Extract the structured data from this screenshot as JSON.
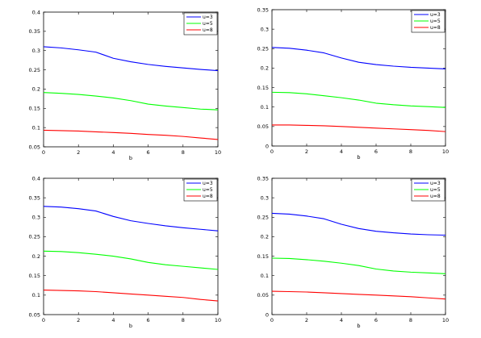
{
  "chart_data": [
    {
      "type": "line",
      "xlabel": "b",
      "ylabel": "",
      "title": "",
      "xlim": [
        0,
        10
      ],
      "ylim": [
        0.05,
        0.4
      ],
      "xticks": [
        0,
        2,
        4,
        6,
        8,
        10
      ],
      "yticks": [
        0.05,
        0.1,
        0.15,
        0.2,
        0.25,
        0.3,
        0.35,
        0.4
      ],
      "ytick_labels": [
        "0.05",
        "0.1",
        "0.15",
        "0.2",
        "0.25",
        "0.3",
        "0.35",
        "0.4"
      ],
      "grid": false,
      "legend": "top-right",
      "x": [
        0,
        1,
        2,
        3,
        4,
        5,
        6,
        7,
        8,
        9,
        10
      ],
      "series": [
        {
          "name": "u=3",
          "color": "#0000ff",
          "values": [
            0.31,
            0.307,
            0.302,
            0.296,
            0.28,
            0.271,
            0.264,
            0.259,
            0.255,
            0.251,
            0.248
          ]
        },
        {
          "name": "u=5",
          "color": "#00ff00",
          "values": [
            0.191,
            0.189,
            0.186,
            0.182,
            0.177,
            0.17,
            0.161,
            0.156,
            0.152,
            0.148,
            0.146
          ]
        },
        {
          "name": "u=8",
          "color": "#ff0000",
          "values": [
            0.093,
            0.092,
            0.091,
            0.089,
            0.087,
            0.085,
            0.082,
            0.08,
            0.077,
            0.073,
            0.069
          ]
        }
      ]
    },
    {
      "type": "line",
      "xlabel": "b",
      "ylabel": "",
      "title": "",
      "xlim": [
        0,
        10
      ],
      "ylim": [
        0,
        0.35
      ],
      "xticks": [
        0,
        2,
        4,
        6,
        8,
        10
      ],
      "yticks": [
        0,
        0.05,
        0.1,
        0.15,
        0.2,
        0.25,
        0.3,
        0.35
      ],
      "ytick_labels": [
        "0",
        "0.05",
        "0.1",
        "0.15",
        "0.2",
        "0.25",
        "0.3",
        "0.35"
      ],
      "grid": false,
      "legend": "top-right",
      "x": [
        0,
        1,
        2,
        3,
        4,
        5,
        6,
        7,
        8,
        9,
        10
      ],
      "series": [
        {
          "name": "u=3",
          "color": "#0000ff",
          "values": [
            0.253,
            0.251,
            0.246,
            0.239,
            0.226,
            0.215,
            0.209,
            0.205,
            0.202,
            0.2,
            0.198
          ]
        },
        {
          "name": "u=5",
          "color": "#00ff00",
          "values": [
            0.138,
            0.137,
            0.134,
            0.129,
            0.124,
            0.118,
            0.11,
            0.106,
            0.103,
            0.101,
            0.099
          ]
        },
        {
          "name": "u=8",
          "color": "#ff0000",
          "values": [
            0.054,
            0.054,
            0.053,
            0.052,
            0.05,
            0.048,
            0.046,
            0.044,
            0.042,
            0.04,
            0.037
          ]
        }
      ]
    },
    {
      "type": "line",
      "xlabel": "b",
      "ylabel": "",
      "title": "",
      "xlim": [
        0,
        10
      ],
      "ylim": [
        0.05,
        0.4
      ],
      "xticks": [
        0,
        2,
        4,
        6,
        8,
        10
      ],
      "yticks": [
        0.05,
        0.1,
        0.15,
        0.2,
        0.25,
        0.3,
        0.35,
        0.4
      ],
      "ytick_labels": [
        "0.05",
        "0.1",
        "0.15",
        "0.2",
        "0.25",
        "0.3",
        "0.35",
        "0.4"
      ],
      "grid": false,
      "legend": "top-right",
      "x": [
        0,
        1,
        2,
        3,
        4,
        5,
        6,
        7,
        8,
        9,
        10
      ],
      "series": [
        {
          "name": "u=3",
          "color": "#0000ff",
          "values": [
            0.328,
            0.326,
            0.322,
            0.316,
            0.302,
            0.291,
            0.284,
            0.278,
            0.273,
            0.269,
            0.265
          ]
        },
        {
          "name": "u=5",
          "color": "#00ff00",
          "values": [
            0.213,
            0.212,
            0.209,
            0.205,
            0.2,
            0.193,
            0.184,
            0.178,
            0.174,
            0.17,
            0.166
          ]
        },
        {
          "name": "u=8",
          "color": "#ff0000",
          "values": [
            0.113,
            0.112,
            0.111,
            0.109,
            0.106,
            0.103,
            0.1,
            0.097,
            0.094,
            0.089,
            0.085
          ]
        }
      ]
    },
    {
      "type": "line",
      "xlabel": "b",
      "ylabel": "",
      "title": "",
      "xlim": [
        0,
        10
      ],
      "ylim": [
        0,
        0.35
      ],
      "xticks": [
        0,
        2,
        4,
        6,
        8,
        10
      ],
      "yticks": [
        0,
        0.05,
        0.1,
        0.15,
        0.2,
        0.25,
        0.3,
        0.35
      ],
      "ytick_labels": [
        "0",
        "0.05",
        "0.1",
        "0.15",
        "0.2",
        "0.25",
        "0.3",
        "0.35"
      ],
      "grid": false,
      "legend": "top-right",
      "x": [
        0,
        1,
        2,
        3,
        4,
        5,
        6,
        7,
        8,
        9,
        10
      ],
      "series": [
        {
          "name": "u=3",
          "color": "#0000ff",
          "values": [
            0.26,
            0.258,
            0.253,
            0.246,
            0.232,
            0.221,
            0.214,
            0.21,
            0.207,
            0.205,
            0.204
          ]
        },
        {
          "name": "u=5",
          "color": "#00ff00",
          "values": [
            0.145,
            0.144,
            0.141,
            0.137,
            0.132,
            0.126,
            0.117,
            0.112,
            0.109,
            0.107,
            0.105
          ]
        },
        {
          "name": "u=8",
          "color": "#ff0000",
          "values": [
            0.06,
            0.059,
            0.058,
            0.056,
            0.054,
            0.052,
            0.05,
            0.048,
            0.046,
            0.043,
            0.04
          ]
        }
      ]
    }
  ]
}
